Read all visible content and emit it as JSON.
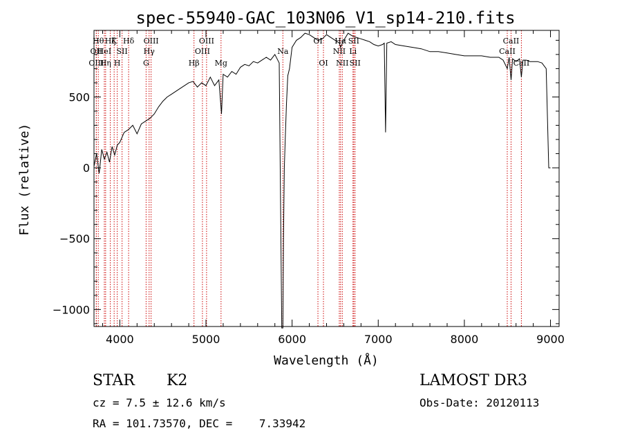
{
  "chart_data": {
    "type": "line",
    "title": "spec-55940-GAC_103N06_V1_sp14-210.fits",
    "xlabel": "Wavelength (Å)",
    "ylabel": "Flux (relative)",
    "xlim": [
      3700,
      9100
    ],
    "ylim": [
      -1120,
      970
    ],
    "x_ticks": [
      4000,
      5000,
      6000,
      7000,
      8000,
      9000
    ],
    "x_tick_labels": [
      "4000",
      "5000",
      "6000",
      "7000",
      "8000",
      "9000"
    ],
    "y_ticks": [
      -1000,
      -500,
      0,
      500
    ],
    "y_tick_labels": [
      "−1000",
      "−500",
      "0",
      "500"
    ],
    "grid": false,
    "series": [
      {
        "x": [
          3700,
          3730,
          3760,
          3790,
          3820,
          3850,
          3880,
          3910,
          3940,
          3970,
          4000,
          4050,
          4100,
          4150,
          4200,
          4250,
          4300,
          4350,
          4400,
          4450,
          4500,
          4550,
          4600,
          4650,
          4700,
          4750,
          4800,
          4850,
          4900,
          4950,
          5000,
          5050,
          5100,
          5150,
          5180,
          5200,
          5250,
          5300,
          5350,
          5400,
          5450,
          5500,
          5550,
          5600,
          5650,
          5700,
          5750,
          5800,
          5850,
          5880,
          5893,
          5900,
          5910,
          5920,
          5935,
          5950,
          5970,
          6000,
          6050,
          6100,
          6150,
          6200,
          6250,
          6300,
          6350,
          6400,
          6450,
          6500,
          6550,
          6563,
          6600,
          6650,
          6700,
          6750,
          6800,
          6850,
          6900,
          6950,
          7000,
          7050,
          7070,
          7085,
          7100,
          7150,
          7200,
          7300,
          7400,
          7500,
          7600,
          7700,
          7800,
          7900,
          8000,
          8100,
          8200,
          8300,
          8400,
          8450,
          8498,
          8520,
          8542,
          8560,
          8600,
          8640,
          8662,
          8680,
          8720,
          8760,
          8800,
          8850,
          8900,
          8950,
          8980,
          9000
        ],
        "y": [
          10,
          100,
          -40,
          130,
          60,
          110,
          40,
          150,
          90,
          160,
          180,
          250,
          270,
          300,
          240,
          310,
          330,
          350,
          380,
          430,
          470,
          500,
          520,
          540,
          560,
          580,
          600,
          610,
          570,
          600,
          580,
          640,
          580,
          620,
          380,
          660,
          640,
          680,
          660,
          710,
          730,
          720,
          750,
          740,
          760,
          780,
          760,
          800,
          740,
          -1130,
          -1130,
          -500,
          0,
          200,
          450,
          650,
          700,
          850,
          900,
          920,
          950,
          940,
          920,
          900,
          910,
          940,
          920,
          900,
          880,
          850,
          900,
          950,
          930,
          920,
          910,
          900,
          890,
          870,
          860,
          870,
          880,
          250,
          880,
          890,
          870,
          860,
          850,
          840,
          820,
          820,
          810,
          800,
          790,
          790,
          790,
          780,
          780,
          760,
          700,
          780,
          620,
          770,
          750,
          770,
          640,
          760,
          760,
          750,
          750,
          750,
          740,
          700,
          0,
          0
        ]
      }
    ],
    "line_markers": [
      {
        "x": 3750,
        "label": "Hθ",
        "row": 0
      },
      {
        "x": 3727,
        "label": "OII",
        "row": 1
      },
      {
        "x": 3727,
        "label": "OIII",
        "row": 2
      },
      {
        "x": 3820,
        "label": "HeI",
        "row": 1
      },
      {
        "x": 3835,
        "label": "Hη",
        "row": 2
      },
      {
        "x": 3889,
        "label": "Hζ",
        "row": 0
      },
      {
        "x": 3934,
        "label": "K",
        "row": 0
      },
      {
        "x": 3970,
        "label": "H",
        "row": 2
      },
      {
        "x": 4026,
        "label": "SII",
        "row": 1
      },
      {
        "x": 4102,
        "label": "Hδ",
        "row": 0
      },
      {
        "x": 4305,
        "label": "G",
        "row": 2
      },
      {
        "x": 4340,
        "label": "Hγ",
        "row": 1
      },
      {
        "x": 4363,
        "label": "OIII",
        "row": 0
      },
      {
        "x": 4861,
        "label": "Hβ",
        "row": 2
      },
      {
        "x": 4959,
        "label": "OIII",
        "row": 1
      },
      {
        "x": 5007,
        "label": "OIII",
        "row": 0
      },
      {
        "x": 5175,
        "label": "Mg",
        "row": 2
      },
      {
        "x": 5893,
        "label": "Na",
        "row": 1
      },
      {
        "x": 6300,
        "label": "OI",
        "row": 0
      },
      {
        "x": 6364,
        "label": "OI",
        "row": 2
      },
      {
        "x": 6548,
        "label": "NII",
        "row": 1
      },
      {
        "x": 6563,
        "label": "Hα",
        "row": 0
      },
      {
        "x": 6583,
        "label": "NII",
        "row": 2
      },
      {
        "x": 6707,
        "label": "Li",
        "row": 1
      },
      {
        "x": 6716,
        "label": "SII",
        "row": 0
      },
      {
        "x": 6731,
        "label": "SII",
        "row": 2
      },
      {
        "x": 8498,
        "label": "CaII",
        "row": 1
      },
      {
        "x": 8542,
        "label": "CaII",
        "row": 0
      },
      {
        "x": 8662,
        "label": "CaII",
        "row": 2
      }
    ],
    "line_color": "#000000",
    "marker_color": "#cc0000"
  },
  "info": {
    "class_label": "STAR",
    "subclass_label": "K2",
    "survey": "LAMOST DR3",
    "cz": "cz = 7.5 ± 12.6 km/s",
    "obs_date": "Obs-Date: 20120113",
    "coords": "RA = 101.73570, DEC =    7.33942"
  }
}
